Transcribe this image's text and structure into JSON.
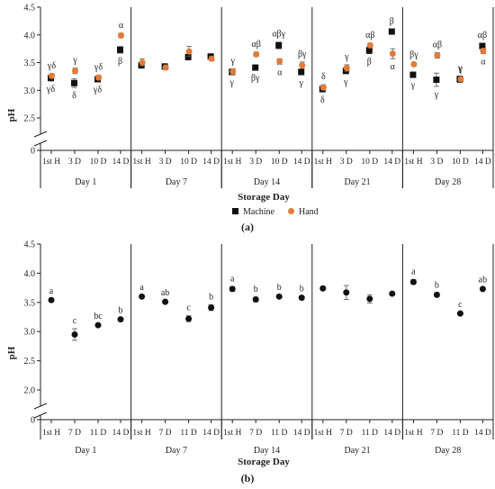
{
  "chart_data": [
    {
      "type": "scatter",
      "panel_label": "(a)",
      "xlabel": "Storage Day",
      "ylabel": "pH",
      "ylim": [
        2.5,
        4.5
      ],
      "y_ticks": [
        "4.5",
        "4.0",
        "3.5",
        "3.0",
        "2.5"
      ],
      "y_zero_label": "0",
      "axis_break": true,
      "grid": false,
      "legend_position": "bottom-center",
      "groups": [
        "Day 1",
        "Day 7",
        "Day 14",
        "Day 21",
        "Day 28"
      ],
      "subcategories": [
        "1st H",
        "3 D",
        "10 D",
        "14 D"
      ],
      "series": [
        {
          "name": "Machine",
          "color": "#111111",
          "marker": "square",
          "values": [
            [
              3.22,
              3.13,
              3.2,
              3.73
            ],
            [
              3.45,
              3.43,
              3.6,
              3.61
            ],
            [
              3.33,
              3.41,
              3.81,
              3.33
            ],
            [
              3.02,
              3.35,
              3.72,
              4.06
            ],
            [
              3.28,
              3.19,
              3.2,
              3.8
            ]
          ],
          "errors": [
            [
              0.05,
              0.08,
              0.04,
              0.06
            ],
            [
              0.03,
              0.03,
              0.05,
              0.04
            ],
            [
              0.04,
              0.04,
              0.06,
              0.05
            ],
            [
              0.05,
              0.05,
              0.06,
              0.04
            ],
            [
              0.04,
              0.12,
              0.06,
              0.05
            ]
          ],
          "letters": [
            [
              "γδ",
              "δ",
              "γδ",
              "β"
            ],
            [
              "",
              "",
              "",
              ""
            ],
            [
              "γ",
              "βγ",
              "αβγ",
              "γ"
            ],
            [
              "δ",
              "γ",
              "β",
              "β"
            ],
            [
              "γ",
              "γ",
              "γ",
              "αβ"
            ]
          ]
        },
        {
          "name": "Hand",
          "color": "#E07B39",
          "marker": "circle",
          "values": [
            [
              3.26,
              3.35,
              3.23,
              3.99
            ],
            [
              3.5,
              3.41,
              3.7,
              3.57
            ],
            [
              3.34,
              3.65,
              3.52,
              3.45
            ],
            [
              3.05,
              3.4,
              3.81,
              3.66
            ],
            [
              3.47,
              3.63,
              3.2,
              3.71
            ]
          ],
          "errors": [
            [
              0.04,
              0.05,
              0.04,
              0.04
            ],
            [
              0.07,
              0.04,
              0.09,
              0.04
            ],
            [
              0.05,
              0.04,
              0.05,
              0.06
            ],
            [
              0.05,
              0.06,
              0.04,
              0.09
            ],
            [
              0.03,
              0.05,
              0.04,
              0.05
            ]
          ],
          "letters": [
            [
              "γδ",
              "γ",
              "γδ",
              "α"
            ],
            [
              "",
              "",
              "",
              ""
            ],
            [
              "γ",
              "αβ",
              "α",
              "βγ"
            ],
            [
              "δ",
              "γ",
              "αβ",
              "α"
            ],
            [
              "βγ",
              "αβ",
              "γ",
              "α"
            ]
          ]
        }
      ]
    },
    {
      "type": "scatter",
      "panel_label": "(b)",
      "xlabel": "Storage Day",
      "ylabel": "pH",
      "ylim": [
        2.0,
        4.5
      ],
      "y_ticks": [
        "4.5",
        "4.0",
        "3.5",
        "3.0",
        "2.5",
        "2.0"
      ],
      "y_zero_label": "0",
      "axis_break": true,
      "grid": false,
      "groups": [
        "Day 1",
        "Day 7",
        "Day 14",
        "Day 21",
        "Day 28"
      ],
      "subcategories": [
        "1st H",
        "7 D",
        "11 D",
        "14 D"
      ],
      "series": [
        {
          "name": "",
          "color": "#111111",
          "marker": "circle",
          "values": [
            [
              3.54,
              2.95,
              3.11,
              3.21
            ],
            [
              3.6,
              3.51,
              3.22,
              3.41
            ],
            [
              3.73,
              3.55,
              3.6,
              3.58
            ],
            [
              3.74,
              3.67,
              3.56,
              3.65
            ],
            [
              3.85,
              3.63,
              3.31,
              3.73
            ]
          ],
          "errors": [
            [
              0.02,
              0.1,
              0.02,
              0.02
            ],
            [
              0.02,
              0.02,
              0.05,
              0.05
            ],
            [
              0.04,
              0.04,
              0.02,
              0.02
            ],
            [
              0.02,
              0.12,
              0.07,
              0.02
            ],
            [
              0.04,
              0.03,
              0.02,
              0.02
            ]
          ],
          "letters": [
            [
              "a",
              "c",
              "bc",
              "b"
            ],
            [
              "a",
              "ab",
              "c",
              "b"
            ],
            [
              "a",
              "b",
              "b",
              "b"
            ],
            [
              "",
              "",
              "",
              ""
            ],
            [
              "a",
              "b",
              "c",
              "ab"
            ]
          ]
        }
      ]
    }
  ]
}
